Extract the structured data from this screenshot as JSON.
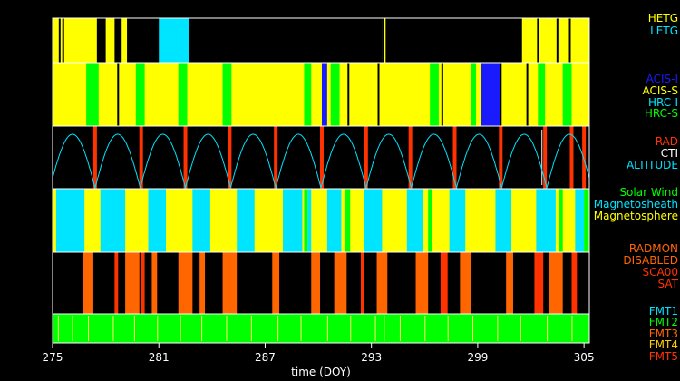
{
  "chart_data": {
    "type": "timeline",
    "x_axis": {
      "label": "time (DOY)",
      "range": [
        275,
        305.3
      ],
      "ticks": [
        "275",
        "281",
        "287",
        "293",
        "299",
        "305"
      ],
      "tick_values": [
        275,
        281,
        287,
        293,
        299,
        305
      ]
    },
    "panels": [
      {
        "id": "grating",
        "base_color": "#000000",
        "legend": [
          {
            "label": "HETG",
            "color": "#ffff00"
          },
          {
            "label": "LETG",
            "color": "#00e5ff"
          }
        ],
        "segments": [
          {
            "start": 275.0,
            "end": 277.5,
            "color": "#ffff00"
          },
          {
            "start": 278.0,
            "end": 278.5,
            "color": "#ffff00"
          },
          {
            "start": 278.9,
            "end": 279.2,
            "color": "#ffff00"
          },
          {
            "start": 281.0,
            "end": 282.7,
            "color": "#00e5ff"
          },
          {
            "start": 293.6,
            "end": 293.8,
            "color": "#ffff00"
          },
          {
            "start": 301.5,
            "end": 305.3,
            "color": "#ffff00"
          }
        ],
        "lines": [
          275.4,
          275.6,
          277.8,
          278.7,
          293.65,
          302.4,
          303.5,
          304.2
        ]
      },
      {
        "id": "instrument",
        "base_color": "#ffff00",
        "legend": [
          {
            "label": "ACIS-I",
            "color": "#1a1aff"
          },
          {
            "label": "ACIS-S",
            "color": "#ffff00"
          },
          {
            "label": "HRC-I",
            "color": "#00e5ff"
          },
          {
            "label": "HRC-S",
            "color": "#00ff00"
          }
        ],
        "segments": [
          {
            "start": 276.9,
            "end": 277.6,
            "color": "#00ff00"
          },
          {
            "start": 279.7,
            "end": 280.2,
            "color": "#00ff00"
          },
          {
            "start": 282.1,
            "end": 282.6,
            "color": "#00ff00"
          },
          {
            "start": 284.6,
            "end": 285.1,
            "color": "#00ff00"
          },
          {
            "start": 289.2,
            "end": 289.6,
            "color": "#00ff00"
          },
          {
            "start": 290.7,
            "end": 291.2,
            "color": "#00ff00"
          },
          {
            "start": 290.2,
            "end": 290.5,
            "color": "#1a1aff"
          },
          {
            "start": 296.3,
            "end": 296.8,
            "color": "#00ff00"
          },
          {
            "start": 298.6,
            "end": 298.9,
            "color": "#00ff00"
          },
          {
            "start": 299.2,
            "end": 300.3,
            "color": "#1a1aff"
          },
          {
            "start": 302.4,
            "end": 302.8,
            "color": "#00ff00"
          },
          {
            "start": 303.8,
            "end": 304.3,
            "color": "#00ff00"
          }
        ],
        "lines": [
          278.7,
          291.7,
          293.4,
          297.0,
          300.3,
          301.8
        ]
      },
      {
        "id": "radiation",
        "base_color": "#000000",
        "legend": [
          {
            "label": "RAD",
            "color": "#ff3300"
          },
          {
            "label": "CTI",
            "color": "#ffffff"
          },
          {
            "label": "ALTITUDE",
            "color": "#00e5ff"
          }
        ],
        "altitude_period_days": 2.55,
        "altitude_first_minimum": 277.4,
        "rad_markers": [
          277.4,
          280.0,
          282.5,
          285.0,
          287.6,
          290.2,
          292.7,
          295.2,
          297.7,
          300.3,
          302.8,
          304.3,
          305.0
        ],
        "cti_markers": [
          277.2,
          302.6
        ]
      },
      {
        "id": "region",
        "base_color": "#ffff00",
        "legend": [
          {
            "label": "Solar Wind",
            "color": "#00ff00"
          },
          {
            "label": "Magnetosheath",
            "color": "#00e5ff"
          },
          {
            "label": "Magnetosphere",
            "color": "#ffff00"
          }
        ],
        "segments": [
          {
            "start": 275.2,
            "end": 276.8,
            "color": "#00e5ff"
          },
          {
            "start": 277.7,
            "end": 279.1,
            "color": "#00e5ff"
          },
          {
            "start": 280.4,
            "end": 281.4,
            "color": "#00e5ff"
          },
          {
            "start": 282.9,
            "end": 283.9,
            "color": "#00e5ff"
          },
          {
            "start": 285.4,
            "end": 286.4,
            "color": "#00e5ff"
          },
          {
            "start": 288.0,
            "end": 289.1,
            "color": "#00e5ff"
          },
          {
            "start": 289.2,
            "end": 289.4,
            "color": "#00ff00"
          },
          {
            "start": 289.4,
            "end": 289.6,
            "color": "#00e5ff"
          },
          {
            "start": 290.5,
            "end": 291.3,
            "color": "#00e5ff"
          },
          {
            "start": 291.5,
            "end": 291.8,
            "color": "#00ff00"
          },
          {
            "start": 292.6,
            "end": 293.6,
            "color": "#00e5ff"
          },
          {
            "start": 295.0,
            "end": 295.9,
            "color": "#00e5ff"
          },
          {
            "start": 296.2,
            "end": 296.4,
            "color": "#00ff00"
          },
          {
            "start": 297.4,
            "end": 298.3,
            "color": "#00e5ff"
          },
          {
            "start": 300.0,
            "end": 300.9,
            "color": "#00e5ff"
          },
          {
            "start": 302.3,
            "end": 303.4,
            "color": "#00e5ff"
          },
          {
            "start": 303.6,
            "end": 303.8,
            "color": "#00ff00"
          },
          {
            "start": 304.5,
            "end": 305.0,
            "color": "#00e5ff"
          },
          {
            "start": 305.0,
            "end": 305.3,
            "color": "#00ff00"
          }
        ]
      },
      {
        "id": "radmon",
        "base_color": "#000000",
        "legend": [
          {
            "label": "RADMON",
            "color": "#ff6600"
          },
          {
            "label": "DISABLED",
            "color": "#ff6600"
          },
          {
            "label": "SCA00",
            "color": "#ff3300"
          },
          {
            "label": "SAT",
            "color": "#ff3300"
          }
        ],
        "segments": [
          {
            "start": 276.7,
            "end": 277.3,
            "color": "#ff6600"
          },
          {
            "start": 278.5,
            "end": 278.7,
            "color": "#ff3300"
          },
          {
            "start": 279.1,
            "end": 279.9,
            "color": "#ff6600"
          },
          {
            "start": 280.0,
            "end": 280.2,
            "color": "#ff3300"
          },
          {
            "start": 280.6,
            "end": 280.9,
            "color": "#ff6600"
          },
          {
            "start": 282.1,
            "end": 282.9,
            "color": "#ff6600"
          },
          {
            "start": 283.3,
            "end": 283.6,
            "color": "#ff6600"
          },
          {
            "start": 284.6,
            "end": 285.4,
            "color": "#ff6600"
          },
          {
            "start": 287.4,
            "end": 287.8,
            "color": "#ff6600"
          },
          {
            "start": 289.6,
            "end": 290.1,
            "color": "#ff6600"
          },
          {
            "start": 290.9,
            "end": 291.6,
            "color": "#ff6600"
          },
          {
            "start": 292.4,
            "end": 292.6,
            "color": "#ff3300"
          },
          {
            "start": 293.3,
            "end": 293.9,
            "color": "#ff6600"
          },
          {
            "start": 295.5,
            "end": 296.2,
            "color": "#ff6600"
          },
          {
            "start": 296.9,
            "end": 297.3,
            "color": "#ff3300"
          },
          {
            "start": 298.0,
            "end": 298.6,
            "color": "#ff6600"
          },
          {
            "start": 300.6,
            "end": 301.0,
            "color": "#ff6600"
          },
          {
            "start": 302.2,
            "end": 302.7,
            "color": "#ff3300"
          },
          {
            "start": 303.0,
            "end": 303.8,
            "color": "#ff6600"
          },
          {
            "start": 304.3,
            "end": 304.6,
            "color": "#ff3300"
          }
        ]
      },
      {
        "id": "format",
        "base_color": "#00ff00",
        "legend": [
          {
            "label": "FMT1",
            "color": "#00e5ff"
          },
          {
            "label": "FMT2",
            "color": "#00ff00"
          },
          {
            "label": "FMT3",
            "color": "#ff6600"
          },
          {
            "label": "FMT4",
            "color": "#ffcc00"
          },
          {
            "label": "FMT5",
            "color": "#ff3300"
          }
        ],
        "ticks_color": "#ffff66",
        "tick_positions": [
          275.3,
          276.1,
          277.0,
          278.4,
          279.6,
          280.9,
          282.2,
          283.4,
          284.8,
          286.2,
          287.7,
          289.0,
          290.5,
          291.8,
          293.2,
          293.7,
          294.6,
          296.0,
          297.3,
          298.7,
          300.1,
          301.4,
          302.9,
          304.3
        ]
      }
    ]
  }
}
